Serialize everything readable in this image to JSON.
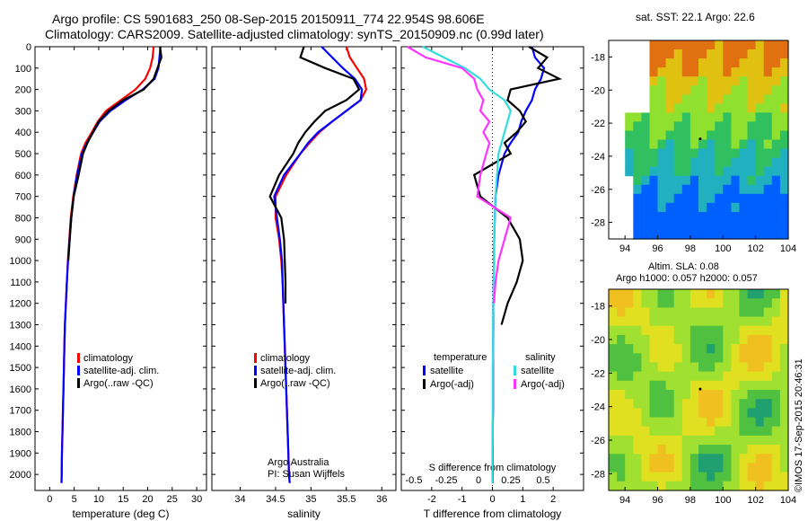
{
  "header": {
    "line1": "Argo profile: CS 5901683_250 08-Sep-2015 20150911_774 22.954S 98.606E",
    "line2": "Climatology: CARS2009. Satellite-adjusted climatology: synTS_20150909.nc (0.99d later)"
  },
  "credit": "©IMOS 17-Sep-2015 20:46:31",
  "colors": {
    "climatology": "#ff0000",
    "satellite": "#0000ff",
    "argo": "#000000",
    "cyan": "#33dddd",
    "magenta": "#ff33ff"
  },
  "chart_data": [
    {
      "type": "line",
      "xlabel": "temperature (deg C)",
      "xlim": [
        -3,
        32
      ],
      "xticks": [
        0,
        5,
        10,
        15,
        20,
        25,
        30
      ],
      "ylim": [
        2075,
        0
      ],
      "yticks": [
        0,
        100,
        200,
        300,
        400,
        500,
        600,
        700,
        800,
        900,
        1000,
        1100,
        1200,
        1300,
        1400,
        1500,
        1600,
        1700,
        1800,
        1900,
        2000
      ],
      "legend": [
        "climatology",
        "satellite-adj. clim.",
        "Argo(..raw -QC)"
      ],
      "legend_placement": "lower-middle",
      "series": [
        {
          "name": "climatology",
          "color": "#ff0000",
          "x": [
            21.2,
            21.0,
            20.5,
            19.5,
            17.5,
            14.5,
            11.5,
            9.8,
            8.6,
            7.3,
            6.4,
            5.5,
            4.8,
            4.3,
            4.0,
            3.7,
            3.5,
            3.3,
            3.1,
            3.0,
            2.9,
            2.8,
            2.7,
            2.6,
            2.5,
            2.45,
            2.4
          ],
          "y": [
            0,
            50,
            100,
            150,
            200,
            250,
            300,
            350,
            400,
            450,
            500,
            600,
            700,
            800,
            900,
            1000,
            1100,
            1200,
            1300,
            1400,
            1500,
            1600,
            1700,
            1800,
            1900,
            2000,
            2040
          ]
        },
        {
          "name": "satellite-adj. clim.",
          "color": "#0000ff",
          "x": [
            22.6,
            22.4,
            22.2,
            21.4,
            19.0,
            15.5,
            12.4,
            10.2,
            8.9,
            7.6,
            6.6,
            5.6,
            4.9,
            4.4,
            4.05,
            3.75,
            3.5,
            3.3,
            3.1,
            3.0,
            2.9,
            2.8,
            2.7,
            2.6,
            2.5,
            2.45,
            2.4
          ],
          "y": [
            0,
            50,
            100,
            150,
            200,
            250,
            300,
            350,
            400,
            450,
            500,
            600,
            700,
            800,
            900,
            1000,
            1100,
            1200,
            1300,
            1400,
            1500,
            1600,
            1700,
            1800,
            1900,
            2000,
            2040
          ]
        },
        {
          "name": "Argo(..raw -QC)",
          "color": "#000000",
          "x": [
            22.5,
            22.8,
            22.0,
            21.2,
            19.2,
            15.0,
            12.0,
            10.0,
            8.8,
            7.7,
            6.8,
            5.9,
            4.9,
            4.4,
            4.1,
            3.8
          ],
          "y": [
            0,
            50,
            100,
            150,
            200,
            250,
            300,
            350,
            400,
            450,
            500,
            600,
            700,
            800,
            900,
            1000
          ]
        }
      ]
    },
    {
      "type": "line",
      "xlabel": "salinity",
      "xlim": [
        33.6,
        36.2
      ],
      "xticks": [
        34,
        34.5,
        35,
        35.5,
        36
      ],
      "ylim": [
        2075,
        0
      ],
      "legend": [
        "climatology",
        "satellite-adj. clim.",
        "Argo(..raw -QC)"
      ],
      "legend_placement": "lower-middle",
      "annotations": [
        "Argo Australia",
        "PI: Susan Wijffels"
      ],
      "series": [
        {
          "name": "climatology",
          "color": "#ff0000",
          "x": [
            35.5,
            35.55,
            35.65,
            35.75,
            35.78,
            35.7,
            35.5,
            35.3,
            35.12,
            34.98,
            34.85,
            34.65,
            34.5,
            34.5,
            34.55,
            34.58,
            34.6,
            34.61,
            34.62,
            34.63,
            34.64,
            34.65,
            34.66,
            34.67,
            34.68,
            34.69,
            34.7
          ],
          "y": [
            0,
            50,
            100,
            150,
            200,
            250,
            300,
            350,
            400,
            450,
            500,
            600,
            700,
            800,
            900,
            1000,
            1100,
            1200,
            1300,
            1400,
            1500,
            1600,
            1700,
            1800,
            1900,
            2000,
            2040
          ]
        },
        {
          "name": "satellite-adj. clim.",
          "color": "#0000ff",
          "x": [
            35.15,
            35.3,
            35.45,
            35.62,
            35.72,
            35.7,
            35.5,
            35.3,
            35.1,
            34.96,
            34.85,
            34.62,
            34.48,
            34.52,
            34.56,
            34.59,
            34.6,
            34.61,
            34.62,
            34.63,
            34.64,
            34.65,
            34.66,
            34.67,
            34.68,
            34.69,
            34.7
          ],
          "y": [
            0,
            50,
            100,
            150,
            200,
            250,
            300,
            350,
            400,
            450,
            500,
            600,
            700,
            800,
            900,
            1000,
            1100,
            1200,
            1300,
            1400,
            1500,
            1600,
            1700,
            1800,
            1900,
            2000,
            2040
          ]
        },
        {
          "name": "Argo(..raw -QC)",
          "color": "#000000",
          "x": [
            34.9,
            34.85,
            35.2,
            35.6,
            35.68,
            35.5,
            35.2,
            35.05,
            34.92,
            34.82,
            34.75,
            34.55,
            34.42,
            34.58,
            34.62,
            34.63,
            34.64,
            34.64
          ],
          "y": [
            0,
            50,
            100,
            150,
            200,
            250,
            300,
            350,
            400,
            450,
            500,
            600,
            700,
            800,
            900,
            1000,
            1100,
            1200
          ]
        }
      ]
    },
    {
      "type": "line",
      "title": "S difference from climatology",
      "xlabel": "T difference from climatology",
      "xlim": [
        -3,
        3
      ],
      "xticks": [
        -2,
        -1,
        0,
        1,
        2
      ],
      "top_axis_ticklabels": [
        "-0.5",
        "-0.25",
        "0",
        "0.25",
        "0.5"
      ],
      "ylim": [
        2075,
        0
      ],
      "legend": [
        {
          "group": "temperature",
          "entries": [
            "satellite",
            "Argo(-adj)"
          ]
        },
        {
          "group": "salinity",
          "entries": [
            "satellite",
            "Argo(-adj)"
          ]
        }
      ],
      "series": [
        {
          "name": "temperature satellite",
          "color": "#0000ff",
          "x": [
            1.3,
            1.4,
            1.7,
            1.6,
            1.4,
            1.3,
            1.1,
            0.95,
            0.85,
            0.6,
            0.4,
            0.2,
            0.1,
            0.08,
            0.06,
            0.05,
            0.04,
            0.03,
            0.03,
            0.02,
            0.02,
            0.02,
            0.02,
            0.01,
            0.01,
            0.01,
            0.01
          ],
          "y": [
            0,
            50,
            100,
            150,
            200,
            250,
            300,
            350,
            400,
            450,
            500,
            600,
            700,
            800,
            900,
            1000,
            1100,
            1200,
            1300,
            1400,
            1500,
            1600,
            1700,
            1800,
            1900,
            2000,
            2040
          ]
        },
        {
          "name": "temperature Argo(-adj)",
          "color": "#000000",
          "x": [
            1.2,
            1.8,
            1.5,
            2.2,
            0.6,
            0.5,
            0.9,
            1.1,
            0.8,
            0.4,
            0.6,
            -0.6,
            -0.4,
            0.5,
            0.9,
            1.0,
            0.8,
            0.5,
            0.3
          ],
          "y": [
            0,
            50,
            100,
            150,
            200,
            250,
            300,
            350,
            400,
            450,
            500,
            600,
            700,
            800,
            900,
            1000,
            1100,
            1200,
            1300
          ]
        },
        {
          "name": "salinity satellite",
          "color": "#33dddd",
          "x": [
            -2.3,
            -1.6,
            -0.9,
            -0.4,
            -0.1,
            0.4,
            0.6,
            0.5,
            0.4,
            0.3,
            0.2,
            0.15,
            0.1,
            0.08,
            0.06,
            0.05,
            0.04,
            0.03,
            0.02,
            0.02,
            0.01,
            0.01,
            0.01,
            0.01,
            0.0,
            0.0,
            0.0
          ],
          "y": [
            0,
            50,
            100,
            150,
            200,
            250,
            300,
            350,
            400,
            450,
            500,
            600,
            700,
            800,
            900,
            1000,
            1100,
            1200,
            1300,
            1400,
            1500,
            1600,
            1700,
            1800,
            1900,
            2000,
            2040
          ]
        },
        {
          "name": "salinity Argo(-adj)",
          "color": "#ff33ff",
          "x": [
            -2.8,
            -2.2,
            -1.0,
            -0.6,
            -0.5,
            -0.3,
            -0.4,
            -0.1,
            -0.3,
            -0.1,
            -0.2,
            -0.4,
            -0.5,
            0.6,
            0.4,
            0.2,
            0.1,
            0.05
          ],
          "y": [
            0,
            50,
            100,
            150,
            200,
            250,
            300,
            350,
            400,
            450,
            500,
            600,
            700,
            800,
            900,
            1000,
            1100,
            1200
          ]
        }
      ]
    },
    {
      "type": "heatmap",
      "title": "sat. SST: 22.1  Argo: 22.6",
      "xlim": [
        93,
        104
      ],
      "ylim": [
        -29,
        -17
      ],
      "xticks": [
        94,
        96,
        98,
        100,
        102,
        104
      ],
      "yticks": [
        -18,
        -20,
        -22,
        -24,
        -26,
        -28
      ],
      "colors": [
        "#0060ff",
        "#20b0c0",
        "#30c060",
        "#90e030",
        "#e0c010",
        "#e07010"
      ]
    },
    {
      "type": "heatmap",
      "title": "Altim. SLA: 0.08",
      "subtitle": "Argo h1000: 0.057 h2000: 0.057",
      "xlim": [
        93,
        104
      ],
      "ylim": [
        -29,
        -17
      ],
      "xticks": [
        94,
        96,
        98,
        100,
        102,
        104
      ],
      "yticks": [
        -18,
        -20,
        -22,
        -24,
        -26,
        -28
      ],
      "colors": [
        "#20a070",
        "#50c040",
        "#a0e030",
        "#e0e020",
        "#f0c020"
      ]
    }
  ]
}
